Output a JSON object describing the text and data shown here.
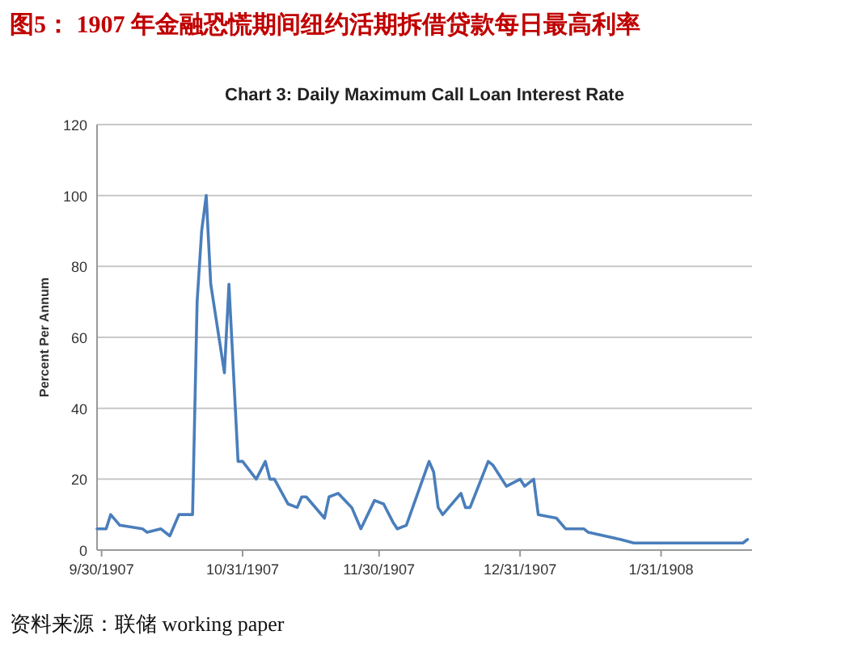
{
  "chart_data": {
    "type": "line",
    "title": "图5：  1907 年金融恐慌期间纽约活期拆借贷款每日最高利率",
    "subtitle": "Chart 3: Daily Maximum Call Loan Interest Rate",
    "ylabel": "Percent Per Annum",
    "annotations": [
      "资料来源：联储 working paper"
    ],
    "x": [
      "1907-09-29",
      "1907-10-01",
      "1907-10-02",
      "1907-10-04",
      "1907-10-09",
      "1907-10-10",
      "1907-10-13",
      "1907-10-15",
      "1907-10-16",
      "1907-10-17",
      "1907-10-20",
      "1907-10-21",
      "1907-10-22",
      "1907-10-23",
      "1907-10-24",
      "1907-10-27",
      "1907-10-28",
      "1907-10-30",
      "1907-10-31",
      "1907-11-03",
      "1907-11-05",
      "1907-11-06",
      "1907-11-07",
      "1907-11-10",
      "1907-11-12",
      "1907-11-13",
      "1907-11-14",
      "1907-11-18",
      "1907-11-19",
      "1907-11-21",
      "1907-11-24",
      "1907-11-26",
      "1907-11-29",
      "1907-12-01",
      "1907-12-03",
      "1907-12-04",
      "1907-12-06",
      "1907-12-11",
      "1907-12-12",
      "1907-12-13",
      "1907-12-14",
      "1907-12-18",
      "1907-12-19",
      "1907-12-20",
      "1907-12-24",
      "1907-12-25",
      "1907-12-28",
      "1907-12-31",
      "1908-01-01",
      "1908-01-03",
      "1908-01-04",
      "1908-01-08",
      "1908-01-10",
      "1908-01-14",
      "1908-01-15",
      "1908-01-22",
      "1908-01-25",
      "1908-02-18",
      "1908-02-19"
    ],
    "series": [
      {
        "color": "#4a7ebb",
        "values": [
          6,
          6,
          10,
          7,
          6,
          5,
          6,
          4,
          7,
          10,
          10,
          70,
          90,
          100,
          75,
          50,
          75,
          25,
          25,
          20,
          25,
          20,
          20,
          13,
          12,
          15,
          15,
          9,
          15,
          16,
          12,
          6,
          14,
          13,
          8,
          6,
          7,
          25,
          22,
          12,
          10,
          16,
          12,
          12,
          25,
          24,
          18,
          20,
          18,
          20,
          10,
          9,
          6,
          6,
          5,
          3,
          2,
          2,
          3
        ]
      }
    ],
    "xlim": [
      "1907-09-29",
      "1908-02-20"
    ],
    "xticks": [
      {
        "value": "1907-09-30",
        "label": "9/30/1907"
      },
      {
        "value": "1907-10-31",
        "label": "10/31/1907"
      },
      {
        "value": "1907-11-30",
        "label": "11/30/1907"
      },
      {
        "value": "1907-12-31",
        "label": "12/31/1907"
      },
      {
        "value": "1908-01-31",
        "label": "1/31/1908"
      }
    ],
    "ylim": [
      0,
      120
    ],
    "yticks": [
      0,
      20,
      40,
      60,
      80,
      100,
      120
    ],
    "grid": "y"
  }
}
